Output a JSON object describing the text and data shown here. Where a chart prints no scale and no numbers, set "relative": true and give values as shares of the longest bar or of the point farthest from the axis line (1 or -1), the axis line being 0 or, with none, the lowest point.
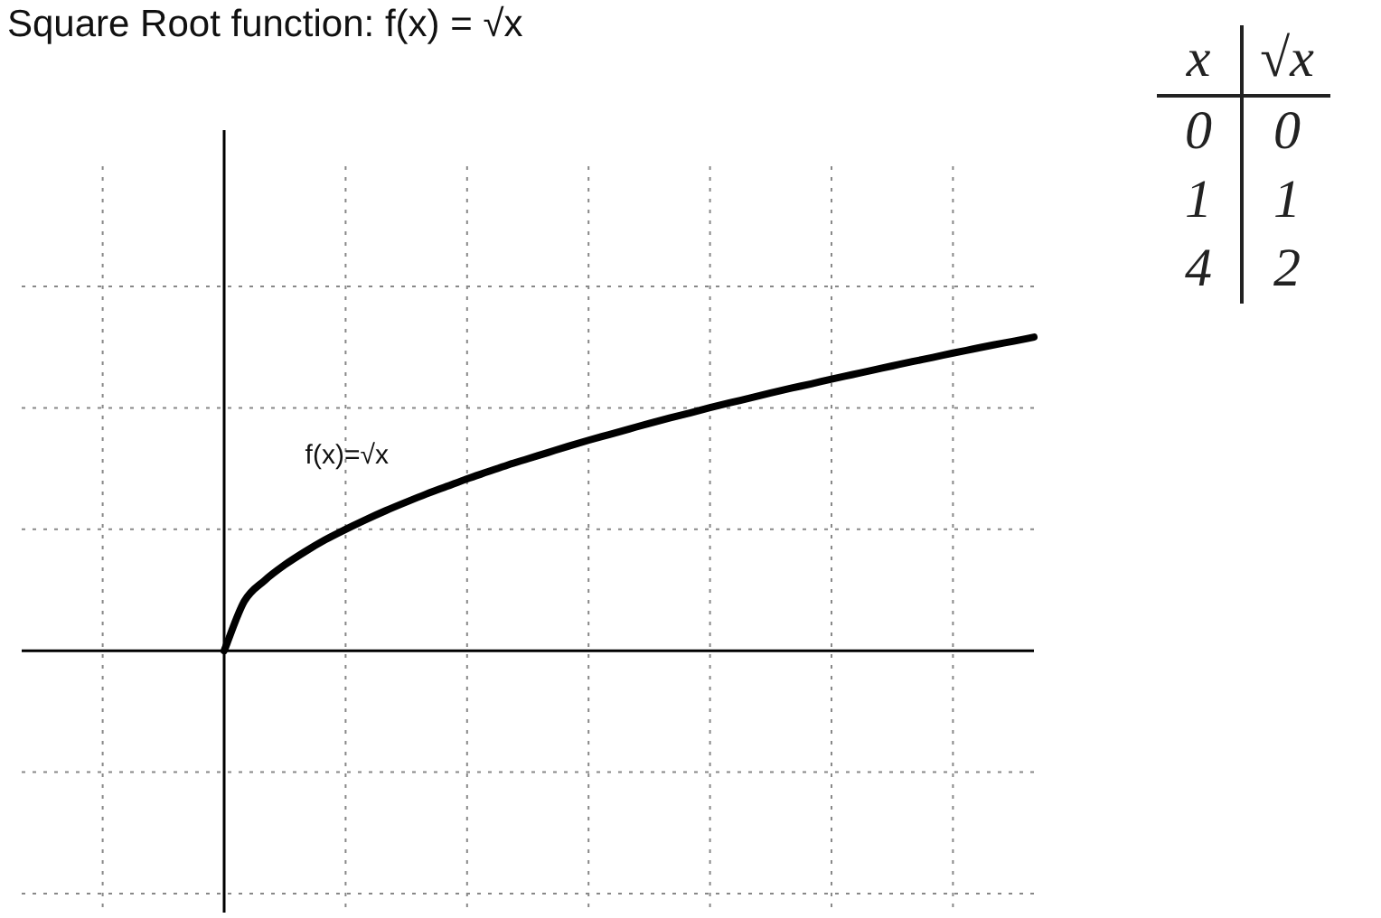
{
  "chart_data": {
    "type": "line",
    "title": "Square Root function:  f(x) = √x",
    "relative": true,
    "grid": true,
    "legend": false,
    "marker": "none",
    "line_style": "solid",
    "categories": [
      null,
      null,
      null,
      null,
      null,
      null,
      null,
      null,
      null,
      null,
      null,
      null,
      null,
      null,
      null,
      null,
      null,
      null,
      null,
      null,
      null,
      null,
      null,
      null,
      null,
      null,
      null,
      null,
      null,
      null,
      null,
      null,
      null,
      null,
      null,
      null,
      null,
      null,
      null,
      null,
      null,
      null,
      null,
      null,
      null,
      null,
      null,
      null,
      null,
      null,
      null
    ],
    "series": [
      {
        "color": "#000000",
        "values": [
          null,
          null,
          null,
          null,
          null,
          null,
          null,
          null,
          null,
          null,
          0,
          0.158,
          0.224,
          0.274,
          0.316,
          0.354,
          0.387,
          0.418,
          0.447,
          0.474,
          0.5,
          0.524,
          0.548,
          0.57,
          0.592,
          0.612,
          0.632,
          0.652,
          0.671,
          0.689,
          0.707,
          0.725,
          0.742,
          0.758,
          0.775,
          0.791,
          0.806,
          0.822,
          0.837,
          0.851,
          0.866,
          0.88,
          0.894,
          0.908,
          0.922,
          0.935,
          0.949,
          0.962,
          0.975,
          0.987,
          1
        ]
      }
    ],
    "annotations": [
      "f(x)=√x",
      "x",
      "√x",
      "0",
      "0",
      "1",
      "1",
      "4",
      "2"
    ]
  }
}
